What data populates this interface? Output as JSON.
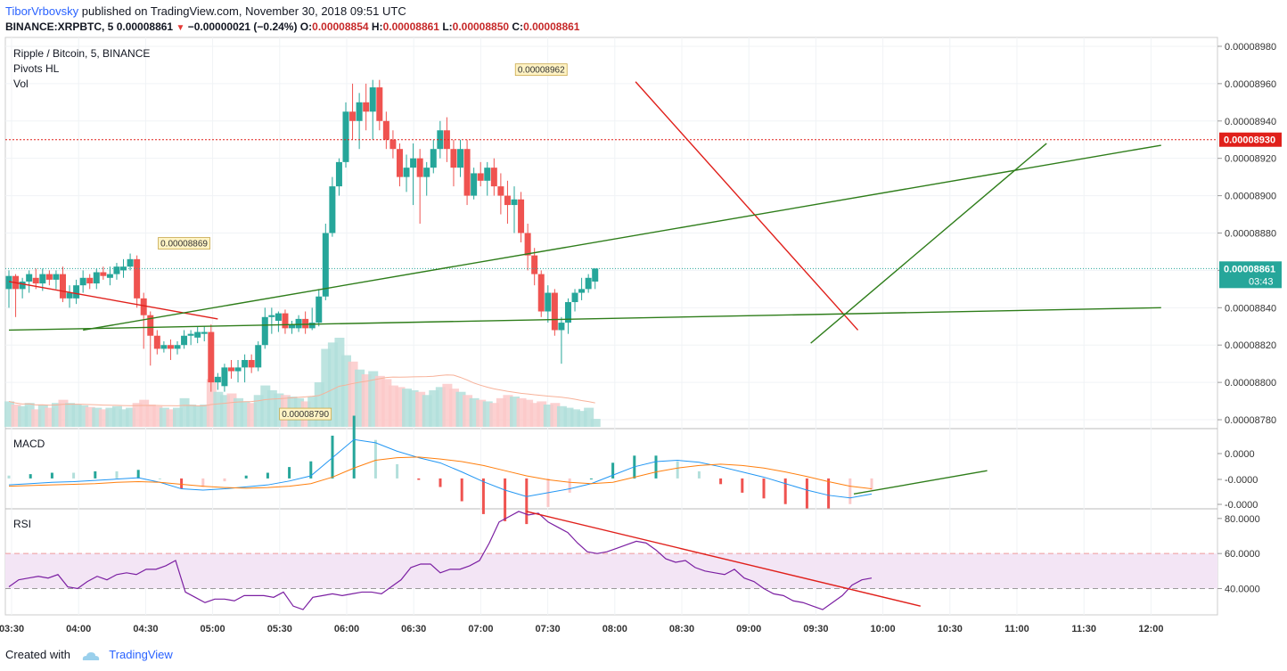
{
  "header": {
    "author": "TiborVrbovsky",
    "published": "published on TradingView.com, November 30, 2018 09:51 UTC",
    "symbol": "BINANCE:XRPBTC, 5",
    "close": "0.00008861",
    "change_arrow": "▼",
    "change": "−0.00000021 (−0.24%)",
    "o_label": "O:",
    "o_val": "0.00008854",
    "h_label": "H:",
    "h_val": "0.00008861",
    "l_label": "L:",
    "l_val": "0.00008850",
    "c_label": "C:",
    "c_val": "0.00008861"
  },
  "footer": {
    "created_with": "Created with",
    "brand": "TradingView"
  },
  "colors": {
    "up": "#26a69a",
    "down": "#ef5350",
    "trend_red": "#e0201b",
    "trend_green": "#2e7d1a",
    "macd": "#2196f3",
    "signal": "#ff7f0e",
    "rsi": "#7b1fa2",
    "rsi_band": "#f3e5f5"
  },
  "chart_data": [
    {
      "type": "candlestick",
      "title": "Ripple / Bitcoin, 5, BINANCE",
      "indicators": [
        "Pivots HL",
        "Vol"
      ],
      "x_labels": [
        "03:30",
        "04:00",
        "04:30",
        "05:00",
        "05:30",
        "06:00",
        "06:30",
        "07:00",
        "07:30",
        "08:00",
        "08:30",
        "09:00",
        "09:30",
        "10:00",
        "10:30",
        "11:00",
        "11:30",
        "12:00"
      ],
      "y_ticks": [
        "0.00008980",
        "0.00008960",
        "0.00008940",
        "0.00008920",
        "0.00008900",
        "0.00008880",
        "0.00008860",
        "0.00008840",
        "0.00008820",
        "0.00008800",
        "0.00008780"
      ],
      "ylim": [
        8.77e-05,
        8.99e-05
      ],
      "price_line": {
        "value": 8.861e-05,
        "label": "0.00008861",
        "countdown": "03:43"
      },
      "alert_line": {
        "value": 8.93e-05,
        "label": "0.00008930"
      },
      "pivots": [
        {
          "label": "0.00008869",
          "price": 8.869e-05,
          "bar": 26,
          "pos": "high"
        },
        {
          "label": "0.00008962",
          "price": 8.962e-05,
          "bar": 79,
          "pos": "high"
        },
        {
          "label": "0.00008790",
          "price": 8.79e-05,
          "bar": 44,
          "pos": "low"
        }
      ],
      "trend_lines": [
        {
          "color": "red",
          "from": [
            0,
            8.854e-05
          ],
          "to": [
            31,
            8.834e-05
          ]
        },
        {
          "color": "red",
          "from": [
            93,
            8.961e-05
          ],
          "to": [
            126,
            8.828e-05
          ]
        },
        {
          "color": "green",
          "from": [
            0,
            8.828e-05
          ],
          "to": [
            171,
            8.84e-05
          ]
        },
        {
          "color": "green",
          "from": [
            11,
            8.828e-05
          ],
          "to": [
            171,
            8.927e-05
          ]
        },
        {
          "color": "green",
          "from": [
            119,
            8.821e-05
          ],
          "to": [
            154,
            8.928e-05
          ]
        }
      ],
      "candles": {
        "fields": [
          "open",
          "high",
          "low",
          "close",
          "volume"
        ],
        "values": [
          [
            8.85e-05,
            8.86e-05,
            8.84e-05,
            8.857e-05,
            32
          ],
          [
            8.857e-05,
            8.858e-05,
            8.835e-05,
            8.85e-05,
            28
          ],
          [
            8.85e-05,
            8.856e-05,
            8.845e-05,
            8.854e-05,
            26
          ],
          [
            8.854e-05,
            8.86e-05,
            8.848e-05,
            8.858e-05,
            30
          ],
          [
            8.856e-05,
            8.861e-05,
            8.85e-05,
            8.853e-05,
            22
          ],
          [
            8.853e-05,
            8.861e-05,
            8.849e-05,
            8.858e-05,
            28
          ],
          [
            8.858e-05,
            8.86e-05,
            8.852e-05,
            8.855e-05,
            24
          ],
          [
            8.855e-05,
            8.86e-05,
            8.85e-05,
            8.858e-05,
            30
          ],
          [
            8.858e-05,
            8.862e-05,
            8.843e-05,
            8.845e-05,
            34
          ],
          [
            8.845e-05,
            8.852e-05,
            8.84e-05,
            8.848e-05,
            30
          ],
          [
            8.845e-05,
            8.855e-05,
            8.842e-05,
            8.852e-05,
            28
          ],
          [
            8.852e-05,
            8.86e-05,
            8.848e-05,
            8.856e-05,
            27
          ],
          [
            8.856e-05,
            8.858e-05,
            8.85e-05,
            8.853e-05,
            25
          ],
          [
            8.853e-05,
            8.861e-05,
            8.85e-05,
            8.859e-05,
            24
          ],
          [
            8.859e-05,
            8.862e-05,
            8.855e-05,
            8.857e-05,
            22
          ],
          [
            8.856e-05,
            8.862e-05,
            8.852e-05,
            8.858e-05,
            24
          ],
          [
            8.858e-05,
            8.864e-05,
            8.855e-05,
            8.862e-05,
            26
          ],
          [
            8.86e-05,
            8.866e-05,
            8.856e-05,
            8.862e-05,
            22
          ],
          [
            8.862e-05,
            8.869e-05,
            8.86e-05,
            8.866e-05,
            24
          ],
          [
            8.866e-05,
            8.868e-05,
            8.84e-05,
            8.845e-05,
            30
          ],
          [
            8.845e-05,
            8.848e-05,
            8.818e-05,
            8.836e-05,
            34
          ],
          [
            8.836e-05,
            8.838e-05,
            8.809e-05,
            8.825e-05,
            28
          ],
          [
            8.825e-05,
            8.828e-05,
            8.815e-05,
            8.818e-05,
            26
          ],
          [
            8.818e-05,
            8.822e-05,
            8.816e-05,
            8.82e-05,
            24
          ],
          [
            8.82e-05,
            8.823e-05,
            8.812e-05,
            8.818e-05,
            22
          ],
          [
            8.818e-05,
            8.822e-05,
            8.815e-05,
            8.82e-05,
            24
          ],
          [
            8.82e-05,
            8.828e-05,
            8.818e-05,
            8.825e-05,
            36
          ],
          [
            8.825e-05,
            8.828e-05,
            8.82e-05,
            8.826e-05,
            28
          ],
          [
            8.824e-05,
            8.83e-05,
            8.821e-05,
            8.827e-05,
            26
          ],
          [
            8.826e-05,
            8.83e-05,
            8.822e-05,
            8.827e-05,
            28
          ],
          [
            8.827e-05,
            8.831e-05,
            8.795e-05,
            8.8e-05,
            60
          ],
          [
            8.8e-05,
            8.805e-05,
            8.796e-05,
            8.803e-05,
            44
          ],
          [
            8.798e-05,
            8.81e-05,
            8.795e-05,
            8.808e-05,
            40
          ],
          [
            8.808e-05,
            8.812e-05,
            8.802e-05,
            8.806e-05,
            42
          ],
          [
            8.806e-05,
            8.812e-05,
            8.8e-05,
            8.808e-05,
            36
          ],
          [
            8.808e-05,
            8.815e-05,
            8.8e-05,
            8.812e-05,
            32
          ],
          [
            8.812e-05,
            8.815e-05,
            8.805e-05,
            8.808e-05,
            30
          ],
          [
            8.808e-05,
            8.822e-05,
            8.806e-05,
            8.82e-05,
            40
          ],
          [
            8.82e-05,
            8.84e-05,
            8.818e-05,
            8.835e-05,
            52
          ],
          [
            8.835e-05,
            8.84e-05,
            8.826e-05,
            8.836e-05,
            46
          ],
          [
            8.833e-05,
            8.838e-05,
            8.827e-05,
            8.837e-05,
            42
          ],
          [
            8.837e-05,
            8.839e-05,
            8.826e-05,
            8.829e-05,
            40
          ],
          [
            8.829e-05,
            8.833e-05,
            8.826e-05,
            8.831e-05,
            38
          ],
          [
            8.829e-05,
            8.836e-05,
            8.827e-05,
            8.834e-05,
            36
          ],
          [
            8.834e-05,
            8.838e-05,
            8.826e-05,
            8.829e-05,
            32
          ],
          [
            8.829e-05,
            8.84e-05,
            8.828e-05,
            8.832e-05,
            38
          ],
          [
            8.832e-05,
            8.85e-05,
            8.83e-05,
            8.846e-05,
            56
          ],
          [
            8.846e-05,
            8.885e-05,
            8.844e-05,
            8.88e-05,
            98
          ],
          [
            8.88e-05,
            8.91e-05,
            8.878e-05,
            8.905e-05,
            106
          ],
          [
            8.905e-05,
            8.92e-05,
            8.9e-05,
            8.918e-05,
            112
          ],
          [
            8.918e-05,
            8.95e-05,
            8.915e-05,
            8.945e-05,
            90
          ],
          [
            8.945e-05,
            8.96e-05,
            8.93e-05,
            8.94e-05,
            82
          ],
          [
            8.94e-05,
            8.955e-05,
            8.925e-05,
            8.95e-05,
            72
          ],
          [
            8.95e-05,
            8.96e-05,
            8.935e-05,
            8.945e-05,
            66
          ],
          [
            8.945e-05,
            8.962e-05,
            8.93e-05,
            8.958e-05,
            70
          ],
          [
            8.958e-05,
            8.962e-05,
            8.935e-05,
            8.94e-05,
            64
          ],
          [
            8.94e-05,
            8.945e-05,
            8.925e-05,
            8.93e-05,
            60
          ],
          [
            8.93e-05,
            8.935e-05,
            8.92e-05,
            8.925e-05,
            52
          ],
          [
            8.925e-05,
            8.928e-05,
            8.905e-05,
            8.91e-05,
            50
          ],
          [
            8.91e-05,
            8.922e-05,
            8.902e-05,
            8.915e-05,
            48
          ],
          [
            8.915e-05,
            8.928e-05,
            8.895e-05,
            8.92e-05,
            46
          ],
          [
            8.92e-05,
            8.925e-05,
            8.885e-05,
            8.91e-05,
            44
          ],
          [
            8.91e-05,
            8.918e-05,
            8.9e-05,
            8.915e-05,
            40
          ],
          [
            8.915e-05,
            8.93e-05,
            8.912e-05,
            8.925e-05,
            46
          ],
          [
            8.925e-05,
            8.94e-05,
            8.92e-05,
            8.935e-05,
            50
          ],
          [
            8.935e-05,
            8.942e-05,
            8.918e-05,
            8.925e-05,
            54
          ],
          [
            8.925e-05,
            8.93e-05,
            8.905e-05,
            8.915e-05,
            48
          ],
          [
            8.915e-05,
            8.93e-05,
            8.91e-05,
            8.925e-05,
            44
          ],
          [
            8.925e-05,
            8.93e-05,
            8.895e-05,
            8.9e-05,
            40
          ],
          [
            8.9e-05,
            8.915e-05,
            8.898e-05,
            8.912e-05,
            36
          ],
          [
            8.912e-05,
            8.918e-05,
            8.905e-05,
            8.908e-05,
            34
          ],
          [
            8.908e-05,
            8.918e-05,
            8.9e-05,
            8.915e-05,
            32
          ],
          [
            8.915e-05,
            8.92e-05,
            8.9e-05,
            8.905e-05,
            30
          ],
          [
            8.905e-05,
            8.912e-05,
            8.89e-05,
            8.9e-05,
            36
          ],
          [
            8.9e-05,
            8.908e-05,
            8.885e-05,
            8.895e-05,
            40
          ],
          [
            8.895e-05,
            8.905e-05,
            8.88e-05,
            8.898e-05,
            38
          ],
          [
            8.898e-05,
            8.902e-05,
            8.875e-05,
            8.88e-05,
            36
          ],
          [
            8.88e-05,
            8.885e-05,
            8.86e-05,
            8.868e-05,
            34
          ],
          [
            8.868e-05,
            8.872e-05,
            8.852e-05,
            8.858e-05,
            30
          ],
          [
            8.858e-05,
            8.86e-05,
            8.835e-05,
            8.838e-05,
            32
          ],
          [
            8.838e-05,
            8.852e-05,
            8.832e-05,
            8.848e-05,
            28
          ],
          [
            8.848e-05,
            8.85e-05,
            8.825e-05,
            8.828e-05,
            30
          ],
          [
            8.828e-05,
            8.835e-05,
            8.81e-05,
            8.832e-05,
            26
          ],
          [
            8.832e-05,
            8.845e-05,
            8.826e-05,
            8.843e-05,
            24
          ],
          [
            8.843e-05,
            8.85e-05,
            8.838e-05,
            8.848e-05,
            22
          ],
          [
            8.848e-05,
            8.856e-05,
            8.844e-05,
            8.85e-05,
            20
          ],
          [
            8.85e-05,
            8.858e-05,
            8.848e-05,
            8.856e-05,
            24
          ],
          [
            8.854e-05,
            8.861e-05,
            8.85e-05,
            8.861e-05,
            10
          ]
        ]
      }
    },
    {
      "type": "histogram_line",
      "title": "MACD",
      "y_ticks": [
        "0.0000",
        "-0.0000",
        "-0.0000"
      ],
      "series": [
        {
          "name": "MACD",
          "values": [
            -1e-08,
            -8e-09,
            -6e-09,
            -5e-09,
            -3e-09,
            -1e-09,
            1e-09,
            -6e-09,
            -1.6e-08,
            -1.8e-08,
            -1.6e-08,
            -1.3e-08,
            -1e-08,
            -4e-09,
            4e-09,
            3.2e-08,
            6e-08,
            5.5e-08,
            4.2e-08,
            3.2e-08,
            2.4e-08,
            1e-08,
            -5e-09,
            -1.8e-08,
            -2.8e-08,
            -2.2e-08,
            -1.6e-08,
            -8e-09,
            5e-09,
            1.8e-08,
            2.6e-08,
            2.8e-08,
            2.5e-08,
            1.8e-08,
            1e-08,
            2e-09,
            -8e-09,
            -1.8e-08,
            -2.6e-08,
            -3e-08,
            -2.4e-08
          ]
        },
        {
          "name": "Signal",
          "values": [
            -1.2e-08,
            -1.1e-08,
            -1e-08,
            -9e-09,
            -8e-09,
            -6e-09,
            -5e-09,
            -6e-09,
            -9e-09,
            -1.2e-08,
            -1.4e-08,
            -1.5e-08,
            -1.4e-08,
            -1.2e-08,
            -8e-09,
            2e-09,
            1.6e-08,
            2.8e-08,
            3.2e-08,
            3.3e-08,
            3e-08,
            2.6e-08,
            2e-08,
            1.2e-08,
            4e-09,
            -2e-09,
            -6e-09,
            -8e-09,
            -6e-09,
            2e-09,
            1e-08,
            1.6e-08,
            2e-08,
            2.2e-08,
            2e-08,
            1.6e-08,
            1e-08,
            3e-09,
            -5e-09,
            -1.2e-08,
            -1.6e-08
          ]
        }
      ],
      "trend_line": {
        "from": [
          0.7,
          -2.4e-08
        ],
        "to": [
          0.81,
          1.2e-08
        ]
      }
    },
    {
      "type": "line",
      "title": "RSI",
      "y_ticks": [
        "80.0000",
        "60.0000",
        "40.0000"
      ],
      "band": [
        40,
        60
      ],
      "ylim": [
        25,
        85
      ],
      "values": [
        41,
        45,
        46,
        47,
        46,
        48,
        41,
        40,
        44,
        47,
        45,
        48,
        49,
        48,
        51,
        51,
        53,
        56,
        38,
        35,
        32,
        34,
        34,
        33,
        36,
        36,
        36,
        35,
        38,
        30,
        28,
        35,
        36,
        37,
        36,
        37,
        38,
        38,
        37,
        41,
        45,
        52,
        54,
        54,
        49,
        51,
        51,
        53,
        56,
        66,
        78,
        81,
        84,
        82,
        83,
        78,
        75,
        72,
        66,
        61,
        60,
        61,
        63,
        65,
        67,
        66,
        62,
        57,
        55,
        56,
        52,
        50,
        49,
        48,
        51,
        46,
        44,
        40,
        37,
        36,
        33,
        32,
        30,
        28,
        32,
        36,
        42,
        45,
        46
      ],
      "trend_lines": [
        {
          "from": [
            0.43,
            84
          ],
          "to": [
            0.755,
            30
          ]
        }
      ]
    }
  ]
}
